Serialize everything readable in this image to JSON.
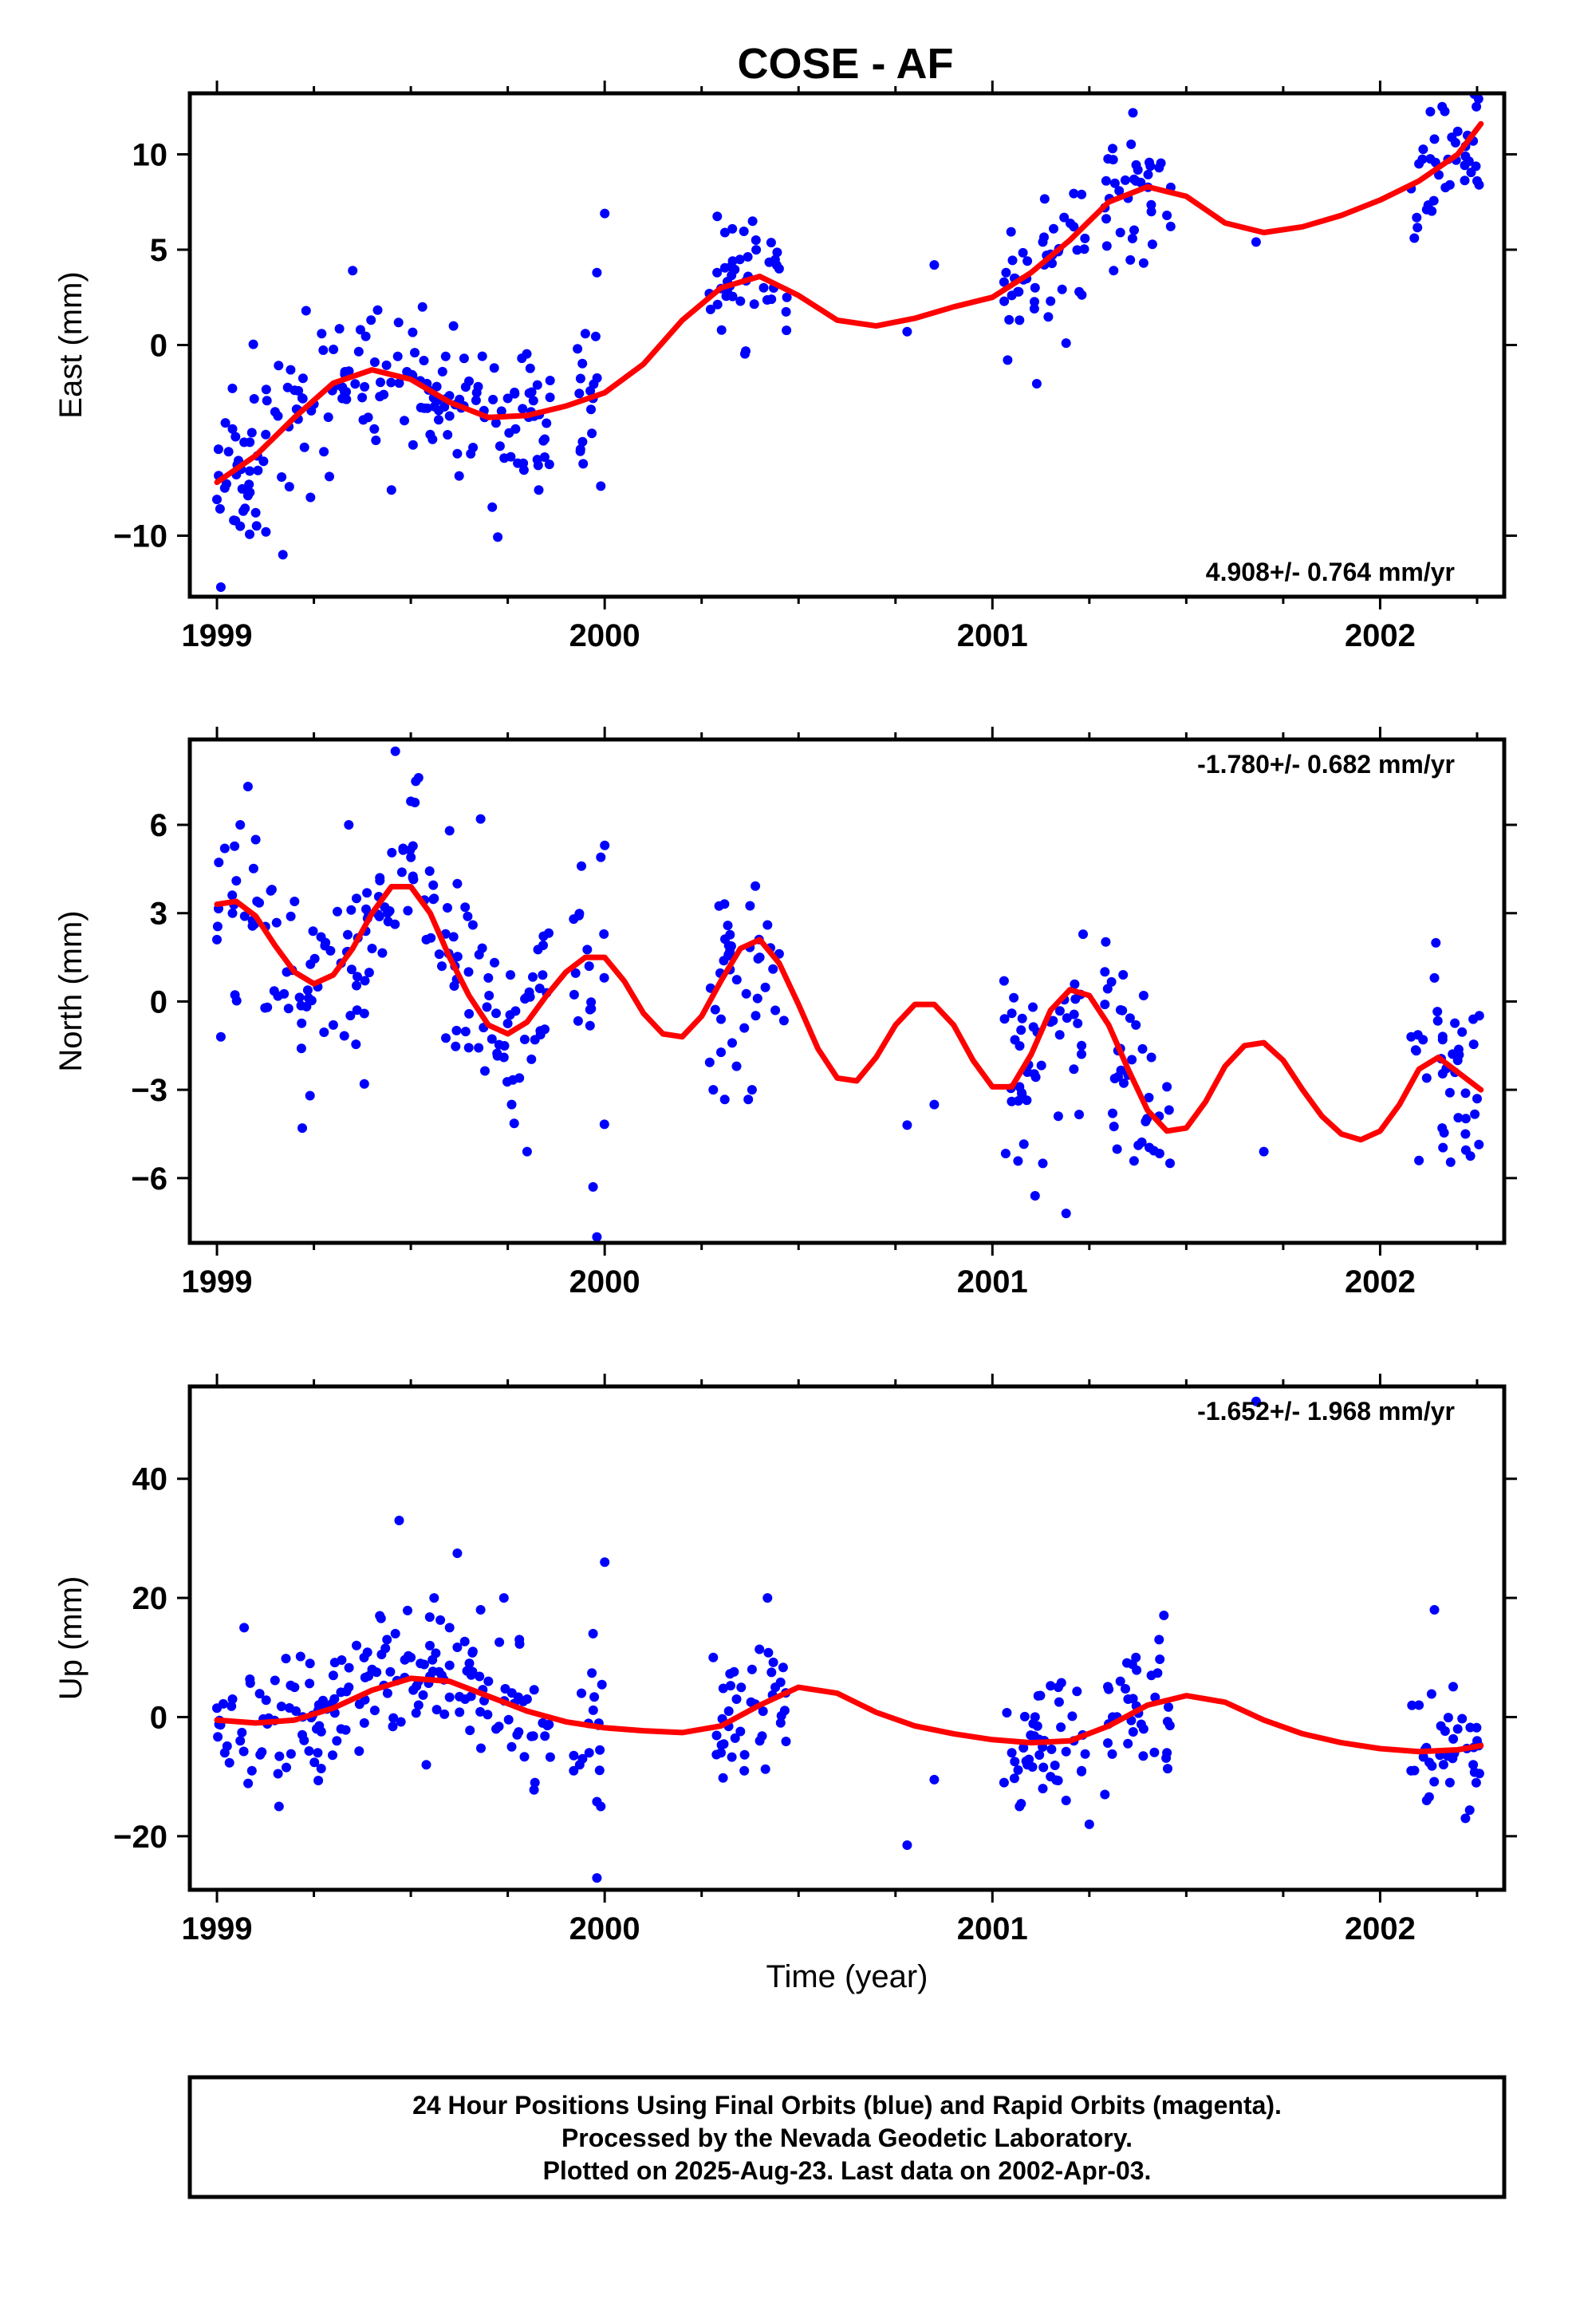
{
  "title": "COSE - AF",
  "footer": {
    "lines": [
      "24 Hour Positions Using Final Orbits (blue) and Rapid Orbits (magenta).",
      "Processed by the Nevada Geodetic Laboratory.",
      "Plotted on 2025-Aug-23. Last data on 2002-Apr-03."
    ]
  },
  "colors": {
    "points": "#0000ff",
    "model": "#ff0000",
    "frame": "#000000"
  },
  "chart_data": [
    {
      "type": "scatter",
      "ylabel": "East (mm)",
      "xlabel": "",
      "rate": "4.908+/- 0.764 mm/yr",
      "rate_position": "bottom-right",
      "xlim": [
        1998.93,
        2002.32
      ],
      "ylim": [
        -13.2,
        13.2
      ],
      "xticks": [
        "1999",
        "2000",
        "2001",
        "2002"
      ],
      "yticks": [
        "10",
        "5",
        "0",
        "−10"
      ],
      "ytick_values": [
        10,
        5,
        0,
        -10
      ],
      "model_curve": {
        "x": [
          1999.0,
          1999.1,
          1999.2,
          1999.3,
          1999.4,
          1999.5,
          1999.6,
          1999.7,
          1999.8,
          1999.9,
          2000.0,
          2000.1,
          2000.2,
          2000.3,
          2000.4,
          2000.5,
          2000.6,
          2000.7,
          2000.8,
          2000.9,
          2001.0,
          2001.1,
          2001.2,
          2001.3,
          2001.4,
          2001.5,
          2001.6,
          2001.7,
          2001.8,
          2001.9,
          2002.0,
          2002.1,
          2002.2,
          2002.26
        ],
        "y": [
          -7.2,
          -5.8,
          -3.8,
          -2.0,
          -1.3,
          -1.8,
          -3.0,
          -3.8,
          -3.7,
          -3.2,
          -2.5,
          -1.0,
          1.3,
          3.0,
          3.6,
          2.6,
          1.3,
          1.0,
          1.4,
          2.0,
          2.5,
          3.8,
          5.5,
          7.5,
          8.3,
          7.8,
          6.4,
          5.9,
          6.2,
          6.8,
          7.6,
          8.6,
          10.0,
          11.6
        ]
      },
      "points": {
        "x": [
          1999.0,
          1999.01,
          1999.02,
          1999.03,
          1999.04,
          1999.05,
          1999.06,
          1999.07,
          1999.08,
          1999.09,
          1999.1,
          1999.12,
          1999.15,
          1999.17,
          1999.19,
          1999.21,
          1999.23,
          1999.25,
          1999.27,
          1999.29,
          1999.31,
          1999.33,
          1999.35,
          1999.37,
          1999.39,
          1999.41,
          1999.43,
          1999.45,
          1999.47,
          1999.49,
          1999.51,
          1999.53,
          1999.55,
          1999.57,
          1999.59,
          1999.61,
          1999.63,
          1999.65,
          1999.67,
          1999.69,
          1999.71,
          1999.73,
          1999.75,
          1999.77,
          1999.79,
          1999.81,
          1999.83,
          1999.85,
          1999.93,
          1999.95,
          1999.97,
          1999.98,
          1999.99,
          2000.0,
          2000.27,
          2000.29,
          2000.31,
          2000.33,
          2000.35,
          2000.37,
          2000.39,
          2000.41,
          2000.43,
          2000.45,
          2000.47,
          2000.78,
          2000.85,
          2001.03,
          2001.05,
          2001.07,
          2001.09,
          2001.11,
          2001.13,
          2001.15,
          2001.17,
          2001.19,
          2001.21,
          2001.23,
          2001.29,
          2001.31,
          2001.33,
          2001.35,
          2001.37,
          2001.39,
          2001.41,
          2001.43,
          2001.45,
          2001.68,
          2002.08,
          2002.1,
          2002.12,
          2002.14,
          2002.16,
          2002.18,
          2002.2,
          2002.22,
          2002.24,
          2002.25
        ],
        "y": [
          -8.1,
          -12.7,
          -7.5,
          -5.6,
          -4.4,
          -6.8,
          -9.5,
          -5.1,
          -7.9,
          -4.6,
          -8.8,
          -6.1,
          -3.5,
          -11.0,
          -1.3,
          -2.4,
          1.8,
          -3.1,
          0.6,
          -6.9,
          -2.1,
          -1.4,
          3.9,
          0.8,
          -3.8,
          -5.0,
          -2.6,
          -7.6,
          -2.0,
          -1.4,
          -0.4,
          2.0,
          -4.7,
          -2.9,
          -0.6,
          1.0,
          -3.3,
          -1.9,
          -2.5,
          -3.8,
          -8.5,
          -5.3,
          -2.8,
          -4.4,
          -6.2,
          -3.5,
          -7.6,
          -4.1,
          -0.2,
          0.6,
          -2.8,
          3.8,
          -7.4,
          6.9,
          2.7,
          3.8,
          5.9,
          4.4,
          2.3,
          3.6,
          5.5,
          3.0,
          2.4,
          4.0,
          2.5,
          0.7,
          4.2,
          3.3,
          2.6,
          1.3,
          4.4,
          3.0,
          5.4,
          2.3,
          4.9,
          0.1,
          6.2,
          7.9,
          7.2,
          10.3,
          5.9,
          7.7,
          8.6,
          4.3,
          7.0,
          9.3,
          6.8,
          5.4,
          8.2,
          9.5,
          7.1,
          10.8,
          12.5,
          8.4,
          11.2,
          9.9,
          10.7,
          8.6
        ],
        "extra_points": 280
      }
    },
    {
      "type": "scatter",
      "ylabel": "North (mm)",
      "xlabel": "",
      "rate": "-1.780+/- 0.682 mm/yr",
      "rate_position": "top-right",
      "xlim": [
        1998.93,
        2002.32
      ],
      "ylim": [
        -8.2,
        8.9
      ],
      "xticks": [
        "1999",
        "2000",
        "2001",
        "2002"
      ],
      "yticks": [
        "6",
        "3",
        "0",
        "−3",
        "−6"
      ],
      "ytick_values": [
        6,
        3,
        0,
        -3,
        -6
      ],
      "model_curve": {
        "x": [
          1999.0,
          1999.05,
          1999.1,
          1999.15,
          1999.2,
          1999.25,
          1999.3,
          1999.35,
          1999.4,
          1999.45,
          1999.5,
          1999.55,
          1999.6,
          1999.65,
          1999.7,
          1999.75,
          1999.8,
          1999.85,
          1999.9,
          1999.95,
          2000.0,
          2000.05,
          2000.1,
          2000.15,
          2000.2,
          2000.25,
          2000.3,
          2000.35,
          2000.4,
          2000.45,
          2000.5,
          2000.55,
          2000.6,
          2000.65,
          2000.7,
          2000.75,
          2000.8,
          2000.85,
          2000.9,
          2000.95,
          2001.0,
          2001.05,
          2001.1,
          2001.15,
          2001.2,
          2001.25,
          2001.3,
          2001.35,
          2001.4,
          2001.45,
          2001.5,
          2001.55,
          2001.6,
          2001.65,
          2001.7,
          2001.75,
          2001.8,
          2001.85,
          2001.9,
          2001.95,
          2002.0,
          2002.05,
          2002.1,
          2002.15,
          2002.2,
          2002.26
        ],
        "y": [
          3.3,
          3.4,
          2.9,
          1.9,
          1.0,
          0.6,
          0.9,
          1.8,
          3.0,
          3.9,
          3.9,
          3.0,
          1.5,
          0.2,
          -0.8,
          -1.1,
          -0.7,
          0.2,
          1.0,
          1.5,
          1.5,
          0.7,
          -0.4,
          -1.1,
          -1.2,
          -0.5,
          0.7,
          1.8,
          2.1,
          1.3,
          -0.1,
          -1.6,
          -2.6,
          -2.7,
          -1.9,
          -0.8,
          -0.1,
          -0.1,
          -0.8,
          -2.0,
          -2.9,
          -2.9,
          -1.8,
          -0.3,
          0.4,
          0.2,
          -0.8,
          -2.3,
          -3.7,
          -4.4,
          -4.3,
          -3.4,
          -2.2,
          -1.5,
          -1.4,
          -2.0,
          -3.0,
          -3.9,
          -4.5,
          -4.7,
          -4.4,
          -3.5,
          -2.3,
          -1.9,
          -2.4,
          -3.0
        ]
      },
      "points": {
        "x": [
          1999.0,
          1999.01,
          1999.02,
          1999.04,
          1999.05,
          1999.06,
          1999.08,
          1999.1,
          1999.13,
          1999.18,
          1999.2,
          1999.22,
          1999.24,
          1999.26,
          1999.28,
          1999.3,
          1999.32,
          1999.34,
          1999.36,
          1999.38,
          1999.4,
          1999.42,
          1999.44,
          1999.46,
          1999.48,
          1999.5,
          1999.52,
          1999.54,
          1999.56,
          1999.58,
          1999.6,
          1999.62,
          1999.64,
          1999.66,
          1999.68,
          1999.7,
          1999.72,
          1999.74,
          1999.76,
          1999.78,
          1999.8,
          1999.82,
          1999.84,
          1999.92,
          1999.94,
          1999.96,
          1999.97,
          1999.98,
          1999.99,
          2000.0,
          2000.28,
          2000.3,
          2000.32,
          2000.34,
          2000.36,
          2000.38,
          2000.4,
          2000.42,
          2000.44,
          2000.78,
          2000.85,
          2001.03,
          2001.05,
          2001.07,
          2001.09,
          2001.11,
          2001.13,
          2001.15,
          2001.17,
          2001.19,
          2001.21,
          2001.23,
          2001.29,
          2001.31,
          2001.33,
          2001.35,
          2001.37,
          2001.39,
          2001.41,
          2001.43,
          2001.45,
          2001.7,
          2002.08,
          2002.1,
          2002.12,
          2002.14,
          2002.16,
          2002.18,
          2002.2,
          2002.22,
          2002.24,
          2002.25
        ],
        "y": [
          2.1,
          -1.2,
          5.2,
          3.0,
          4.1,
          6.0,
          7.3,
          5.5,
          -0.2,
          1.0,
          3.4,
          -4.3,
          -3.2,
          0.5,
          2.0,
          -0.8,
          1.3,
          6.0,
          3.5,
          -2.8,
          1.8,
          4.2,
          3.0,
          8.5,
          5.2,
          6.8,
          7.6,
          2.1,
          3.5,
          1.2,
          5.8,
          4.0,
          3.2,
          2.6,
          6.2,
          0.8,
          -0.4,
          -1.9,
          -3.5,
          -2.6,
          -5.1,
          -1.3,
          0.9,
          2.8,
          4.6,
          1.2,
          -6.3,
          -8.0,
          4.9,
          5.3,
          -3.0,
          -0.6,
          1.9,
          -2.2,
          -0.9,
          -3.0,
          1.5,
          2.6,
          -0.3,
          -4.2,
          -3.5,
          0.7,
          -0.4,
          -2.9,
          -2.4,
          -6.6,
          -5.5,
          -0.7,
          -3.9,
          -7.2,
          -2.3,
          -1.5,
          -0.1,
          -3.8,
          -1.6,
          -2.5,
          -0.8,
          0.2,
          -1.9,
          -3.9,
          -2.9,
          -5.1,
          -1.2,
          -5.4,
          -2.6,
          0.8,
          -4.3,
          -3.1,
          -2.0,
          -4.5,
          -0.6,
          -3.3
        ],
        "extra_points": 280
      }
    },
    {
      "type": "scatter",
      "ylabel": "Up (mm)",
      "xlabel": "Time (year)",
      "rate": "-1.652+/- 1.968 mm/yr",
      "rate_position": "top-right",
      "xlim": [
        1998.93,
        2002.32
      ],
      "ylim": [
        -29.0,
        55.5
      ],
      "xticks": [
        "1999",
        "2000",
        "2001",
        "2002"
      ],
      "yticks": [
        "40",
        "20",
        "0",
        "−20"
      ],
      "ytick_values": [
        40,
        20,
        0,
        -20
      ],
      "model_curve": {
        "x": [
          1999.0,
          1999.1,
          1999.2,
          1999.3,
          1999.4,
          1999.5,
          1999.6,
          1999.7,
          1999.8,
          1999.9,
          2000.0,
          2000.1,
          2000.2,
          2000.3,
          2000.4,
          2000.5,
          2000.6,
          2000.7,
          2000.8,
          2000.9,
          2001.0,
          2001.1,
          2001.2,
          2001.3,
          2001.4,
          2001.5,
          2001.6,
          2001.7,
          2001.8,
          2001.9,
          2002.0,
          2002.1,
          2002.2,
          2002.26
        ],
        "y": [
          -0.5,
          -1.0,
          -0.5,
          1.5,
          4.5,
          6.5,
          6.0,
          3.5,
          1.0,
          -0.8,
          -1.8,
          -2.3,
          -2.6,
          -1.5,
          2.0,
          5.0,
          4.0,
          0.8,
          -1.5,
          -2.8,
          -3.8,
          -4.3,
          -4.0,
          -1.5,
          2.0,
          3.6,
          2.5,
          -0.5,
          -2.8,
          -4.3,
          -5.3,
          -5.8,
          -5.5,
          -4.8
        ]
      },
      "points": {
        "x": [
          1999.0,
          1999.02,
          1999.04,
          1999.06,
          1999.07,
          1999.09,
          1999.16,
          1999.2,
          1999.22,
          1999.24,
          1999.26,
          1999.28,
          1999.3,
          1999.32,
          1999.34,
          1999.36,
          1999.38,
          1999.4,
          1999.42,
          1999.44,
          1999.46,
          1999.47,
          1999.5,
          1999.52,
          1999.54,
          1999.56,
          1999.58,
          1999.6,
          1999.62,
          1999.64,
          1999.66,
          1999.68,
          1999.7,
          1999.72,
          1999.74,
          1999.76,
          1999.78,
          1999.8,
          1999.82,
          1999.84,
          1999.92,
          1999.94,
          1999.96,
          1999.97,
          1999.98,
          1999.99,
          2000.0,
          2000.28,
          2000.3,
          2000.32,
          2000.34,
          2000.36,
          2000.38,
          2000.4,
          2000.42,
          2000.44,
          2000.78,
          2000.85,
          2001.03,
          2001.05,
          2001.07,
          2001.09,
          2001.11,
          2001.13,
          2001.15,
          2001.17,
          2001.19,
          2001.21,
          2001.23,
          2001.25,
          2001.29,
          2001.31,
          2001.33,
          2001.35,
          2001.37,
          2001.39,
          2001.41,
          2001.43,
          2001.45,
          2001.68,
          2002.08,
          2002.1,
          2002.12,
          2002.14,
          2002.16,
          2002.18,
          2002.2,
          2002.22,
          2002.24,
          2002.25
        ],
        "y": [
          1.5,
          -6.0,
          3.0,
          -4.0,
          15.0,
          -9.0,
          -15.0,
          5.0,
          -3.0,
          9.0,
          -6.0,
          2.0,
          7.0,
          -2.0,
          5.0,
          12.0,
          -1.0,
          8.0,
          17.0,
          4.0,
          14.0,
          33.0,
          10.0,
          2.0,
          -8.0,
          20.0,
          7.0,
          15.0,
          27.5,
          3.0,
          11.0,
          18.0,
          6.0,
          -2.0,
          20.0,
          -5.0,
          13.0,
          3.0,
          -11.0,
          -1.0,
          -9.0,
          4.0,
          -6.0,
          14.0,
          -27.0,
          -15.0,
          26.0,
          10.0,
          -6.0,
          1.0,
          3.0,
          -9.0,
          8.0,
          -4.0,
          20.0,
          5.0,
          -21.5,
          -10.5,
          -11.0,
          -6.0,
          -15.0,
          -8.0,
          0.0,
          -12.0,
          -10.0,
          5.0,
          -14.0,
          -4.0,
          -9.0,
          -18.0,
          -13.0,
          0.0,
          6.0,
          3.0,
          10.0,
          -2.0,
          7.0,
          13.0,
          -6.0,
          53.0,
          -9.0,
          2.0,
          -14.0,
          18.0,
          -6.0,
          -11.0,
          -2.0,
          -17.0,
          -8.0,
          -4.0
        ],
        "extra_points": 280
      }
    }
  ]
}
